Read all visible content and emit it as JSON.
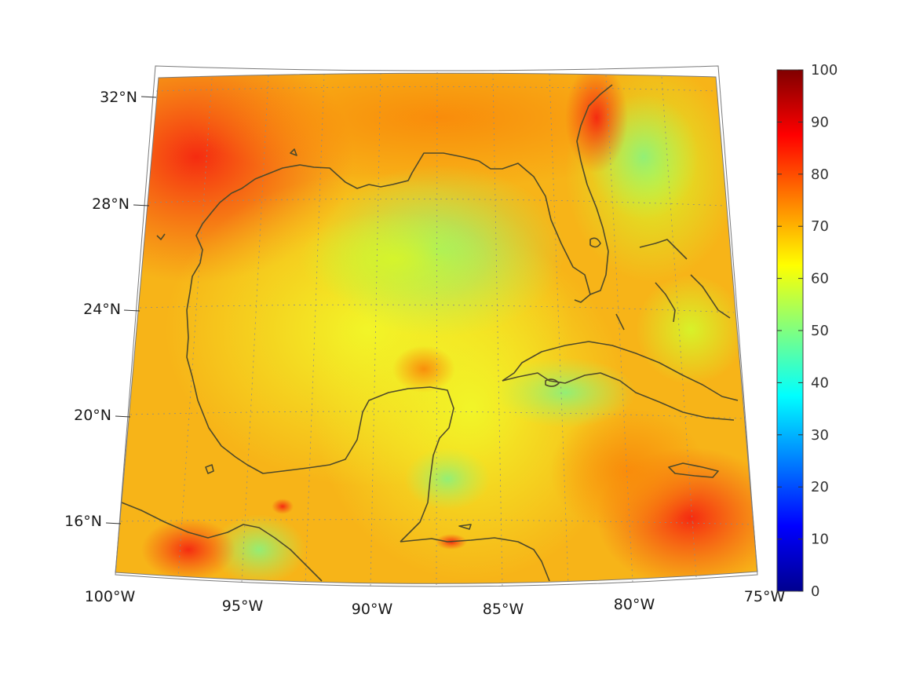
{
  "map": {
    "lon_labels": [
      "100°W",
      "95°W",
      "90°W",
      "85°W",
      "80°W",
      "75°W"
    ],
    "lat_labels": [
      "32°N",
      "28°N",
      "24°N",
      "20°N",
      "16°N"
    ],
    "lon_range": [
      -100,
      -75
    ],
    "lat_range": [
      14,
      33
    ],
    "grid": true,
    "projection": "conic"
  },
  "colorbar": {
    "ticks": [
      "0",
      "10",
      "20",
      "30",
      "40",
      "50",
      "60",
      "70",
      "80",
      "90",
      "100"
    ],
    "range": [
      0,
      100
    ],
    "colormap": "jet",
    "colors": [
      "#00008f",
      "#0000ff",
      "#0080ff",
      "#00ffff",
      "#80ff80",
      "#ffff00",
      "#ff8000",
      "#ff0000",
      "#800000"
    ]
  },
  "chart_data": {
    "type": "heatmap",
    "title": "",
    "xlabel": "",
    "ylabel": "",
    "xlim": [
      -100,
      -75
    ],
    "ylim": [
      14,
      33
    ],
    "zlim": [
      0,
      100
    ]
  }
}
